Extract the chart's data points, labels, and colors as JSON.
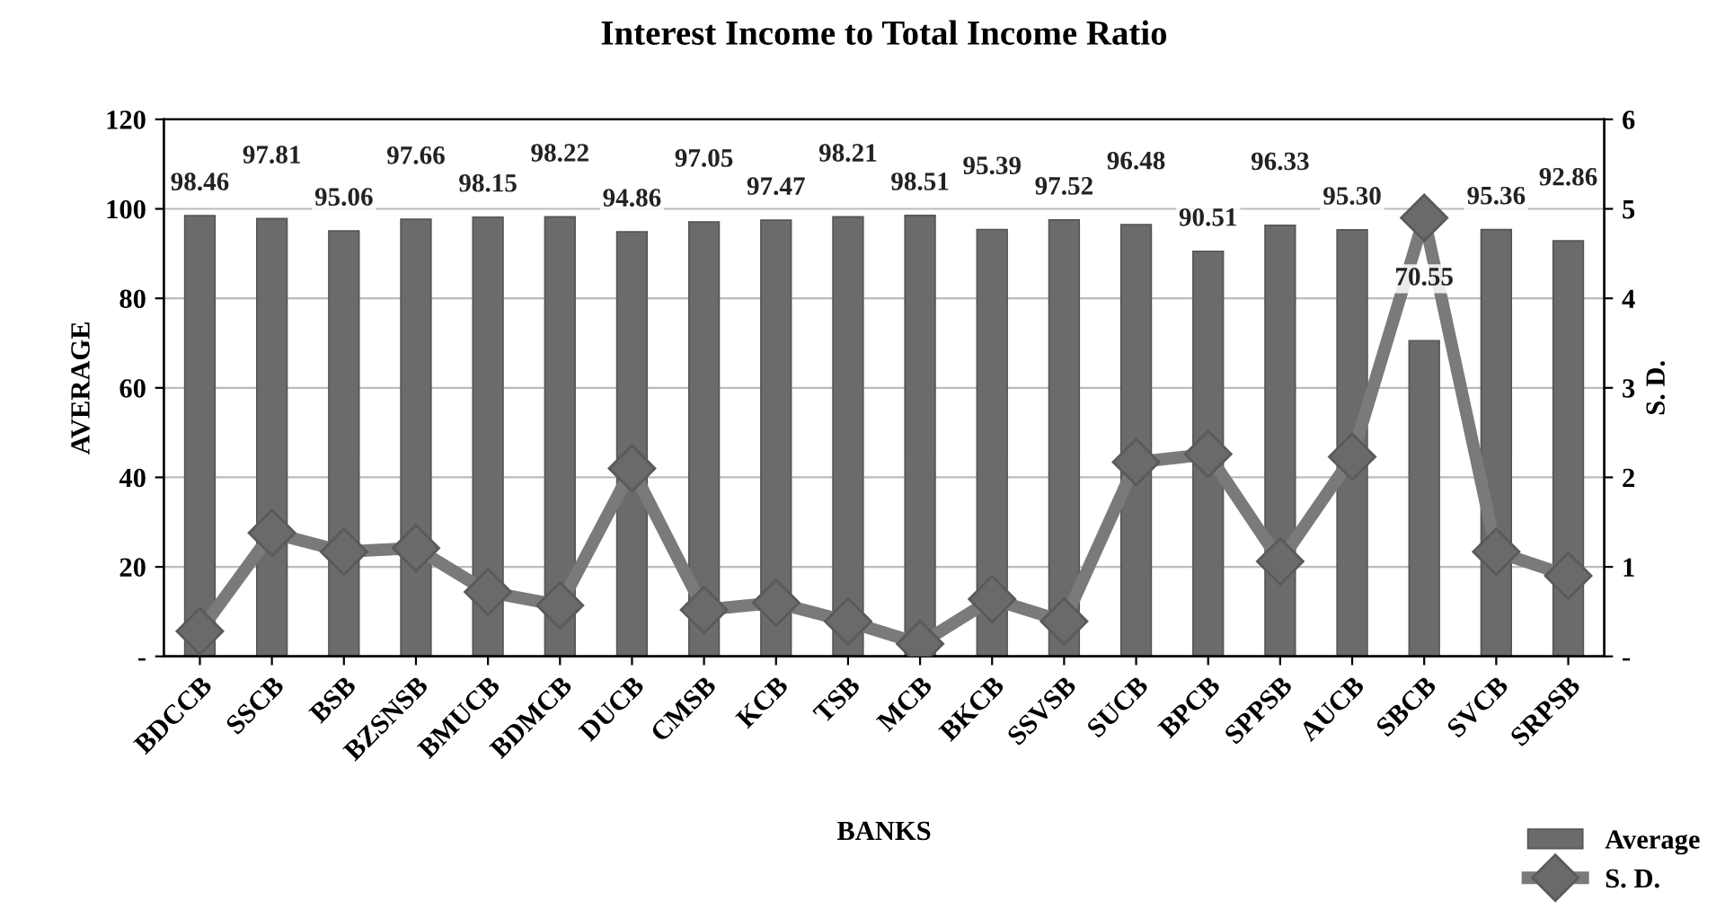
{
  "chart_data": {
    "type": "bar",
    "title": "Interest Income to Total Income Ratio",
    "xlabel": "BANKS",
    "ylabel": "AVERAGE",
    "y2label": "S. D.",
    "categories": [
      "BDCCB",
      "SSCB",
      "BSB",
      "BZSNSB",
      "BMUCB",
      "BDMCB",
      "DUCB",
      "CMSB",
      "KCB",
      "TSB",
      "MCB",
      "BKCB",
      "SSVSB",
      "SUCB",
      "BPCB",
      "SPPSB",
      "AUCB",
      "SBCB",
      "SVCB",
      "SRPSB"
    ],
    "series": [
      {
        "name": "Average",
        "color": "#6b6b6b",
        "values": [
          98.46,
          97.81,
          95.06,
          97.66,
          98.15,
          98.22,
          94.86,
          97.05,
          97.47,
          98.21,
          98.51,
          95.39,
          97.52,
          96.48,
          90.51,
          96.33,
          95.3,
          70.55,
          95.36,
          92.86
        ]
      },
      {
        "name": "S. D.",
        "type": "line",
        "axis": "y2",
        "color": "#7a7a7a",
        "marker": "diamond",
        "values": [
          0.28,
          1.38,
          1.17,
          1.21,
          0.72,
          0.57,
          2.1,
          0.52,
          0.6,
          0.39,
          0.14,
          0.64,
          0.39,
          2.17,
          2.26,
          1.06,
          2.23,
          4.9,
          1.17,
          0.9
        ]
      }
    ],
    "value_labels": [
      "98.46",
      "97.81",
      "95.06",
      "97.66",
      "98.15",
      "98.22",
      "94.86",
      "97.05",
      "97.47",
      "98.21",
      "98.51",
      "95.39",
      "97.52",
      "96.48",
      "90.51",
      "96.33",
      "95.30",
      "70.55",
      "95.36",
      "92.86"
    ],
    "ylim": [
      0,
      120
    ],
    "yticks": [
      {
        "value": 0,
        "label": "-"
      },
      20,
      40,
      60,
      80,
      100,
      120
    ],
    "y2lim": [
      0,
      6
    ],
    "y2ticks": [
      {
        "value": 0,
        "label": "-"
      },
      1,
      2,
      3,
      4,
      5,
      6
    ],
    "grid": "y",
    "legend": "bottom right"
  }
}
